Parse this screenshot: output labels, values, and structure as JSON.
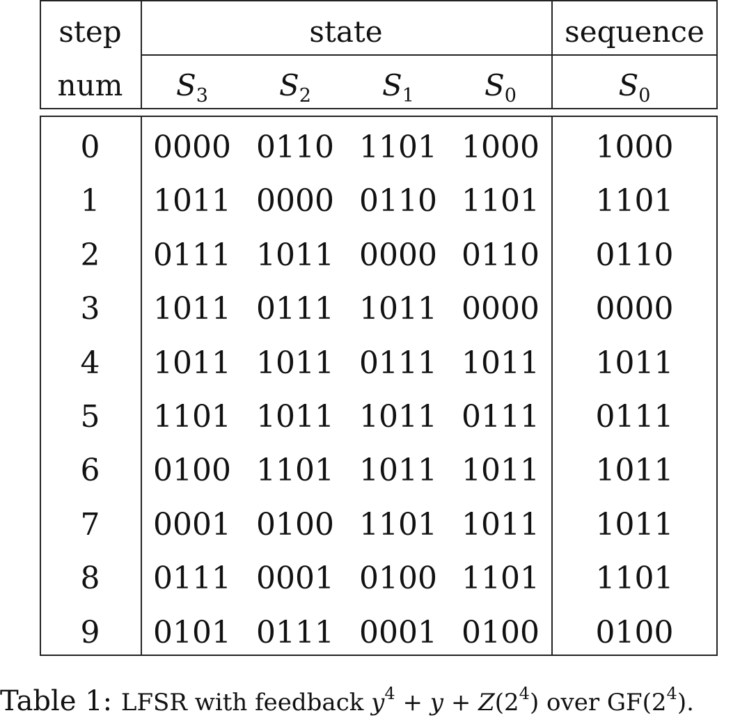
{
  "table": {
    "header_top": {
      "step": "step",
      "state": "state",
      "sequence": "sequence"
    },
    "header_bottom": {
      "num": "num",
      "col_symbol": "S",
      "state_subscripts": [
        "3",
        "2",
        "1",
        "0"
      ],
      "sequence_subscript": "0"
    },
    "rows": [
      {
        "step": "0",
        "s3": "0000",
        "s2": "0110",
        "s1": "1101",
        "s0": "1000",
        "seq": "1000"
      },
      {
        "step": "1",
        "s3": "1011",
        "s2": "0000",
        "s1": "0110",
        "s0": "1101",
        "seq": "1101"
      },
      {
        "step": "2",
        "s3": "0111",
        "s2": "1011",
        "s1": "0000",
        "s0": "0110",
        "seq": "0110"
      },
      {
        "step": "3",
        "s3": "1011",
        "s2": "0111",
        "s1": "1011",
        "s0": "0000",
        "seq": "0000"
      },
      {
        "step": "4",
        "s3": "1011",
        "s2": "1011",
        "s1": "0111",
        "s0": "1011",
        "seq": "1011"
      },
      {
        "step": "5",
        "s3": "1101",
        "s2": "1011",
        "s1": "1011",
        "s0": "0111",
        "seq": "0111"
      },
      {
        "step": "6",
        "s3": "0100",
        "s2": "1101",
        "s1": "1011",
        "s0": "1011",
        "seq": "1011"
      },
      {
        "step": "7",
        "s3": "0001",
        "s2": "0100",
        "s1": "1101",
        "s0": "1011",
        "seq": "1011"
      },
      {
        "step": "8",
        "s3": "0111",
        "s2": "0001",
        "s1": "0100",
        "s0": "1101",
        "seq": "1101"
      },
      {
        "step": "9",
        "s3": "0101",
        "s2": "0111",
        "s1": "0001",
        "s0": "0100",
        "seq": "0100"
      }
    ]
  },
  "caption": {
    "label": "Table 1:",
    "text_before": "LFSR with feedback",
    "formula": {
      "y": "y",
      "exp4": "4",
      "plus1": "+",
      "y2": "y",
      "plus2": "+",
      "Z": "Z",
      "arg_open": "(2",
      "arg_exp": "4",
      "arg_close": ")"
    },
    "text_over": "over",
    "field_open": "GF(2",
    "field_exp": "4",
    "field_close": ")."
  }
}
